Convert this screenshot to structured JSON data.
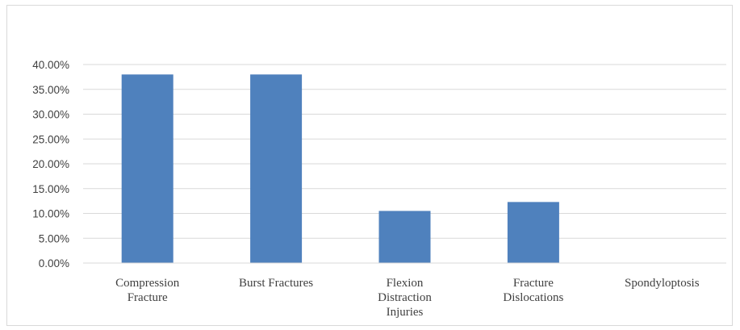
{
  "chart_data": {
    "type": "bar",
    "categories": [
      [
        "Compression",
        "Fracture"
      ],
      [
        "Burst Fractures"
      ],
      [
        "Flexion",
        "Distraction",
        "Injuries"
      ],
      [
        "Fracture",
        "Dislocations"
      ],
      [
        "Spondyloptosis"
      ]
    ],
    "values": [
      0.38,
      0.38,
      0.105,
      0.123,
      0.0
    ],
    "yticks": [
      "0.00%",
      "5.00%",
      "10.00%",
      "15.00%",
      "20.00%",
      "25.00%",
      "30.00%",
      "35.00%",
      "40.00%"
    ],
    "ylim": [
      0,
      0.4
    ],
    "grid": true,
    "bar_color": "#4f81bd",
    "grid_color": "#d9d9d9"
  }
}
